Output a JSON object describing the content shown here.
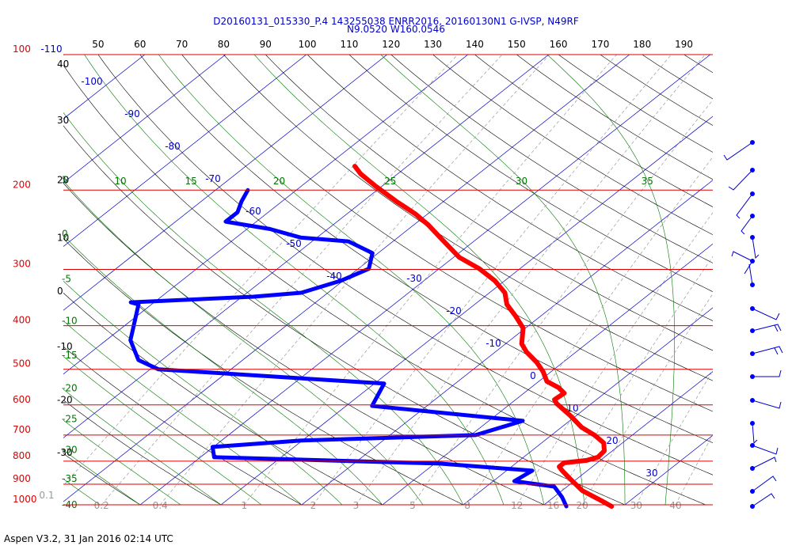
{
  "header": {
    "title": "D20160131_015330_P.4 143255038 ENRR2016, 20160130N1 G-IVSP, N49RF",
    "subtitle": "N9.0520 W160.0546"
  },
  "footer": "Aspen V3.2, 31 Jan 2016  02:14 UTC",
  "chart_data": {
    "type": "skewt",
    "ylim": [
      1000,
      100
    ],
    "yticks": [
      100,
      200,
      300,
      400,
      500,
      600,
      700,
      800,
      900,
      1000
    ],
    "grid": true,
    "grid_color": "#dd0000",
    "isotherms": [
      -110,
      -100,
      -90,
      -80,
      -70,
      -60,
      -50,
      -40,
      -30,
      -20,
      -10,
      0,
      10,
      20,
      30
    ],
    "isotherm_color": "#0000cc",
    "dry_adiabats": [
      -30,
      -20,
      -10,
      0,
      10,
      20,
      30,
      40,
      50,
      60,
      70,
      80,
      90,
      100,
      110,
      120,
      130,
      140,
      150,
      160,
      170,
      180,
      190
    ],
    "dry_adiabat_color": "#000000",
    "moist_adiabats": [
      -40,
      -35,
      -30,
      -25,
      -20,
      -15,
      -10,
      -5,
      0,
      5,
      10,
      15,
      20,
      25,
      30,
      35
    ],
    "moist_adiabat_color": "#007700",
    "mixing_ratios": [
      0.1,
      0.2,
      0.4,
      1,
      2,
      3,
      5,
      8,
      12,
      16,
      20,
      30,
      40
    ],
    "mixing_ratio_color": "#999999",
    "series": [
      {
        "color": "#ff0000",
        "pressure": [
          1008,
          980,
          930,
          875,
          840,
          823,
          807,
          797,
          784,
          759,
          729,
          700,
          673,
          633,
          596,
          584,
          565,
          549,
          532,
          506,
          482,
          458,
          439,
          405,
          381,
          359,
          338,
          318,
          299,
          282,
          260,
          239,
          226,
          212,
          196,
          184,
          177
        ],
        "values": [
          28.6,
          26.5,
          22.5,
          19.1,
          16.9,
          15.9,
          15.9,
          18.3,
          19.2,
          19.0,
          17.7,
          15.3,
          12.5,
          9.2,
          5.7,
          4.8,
          5.0,
          3.4,
          1.0,
          -1.0,
          -3.3,
          -6.1,
          -8.0,
          -10.3,
          -13.1,
          -16.0,
          -18.1,
          -21.2,
          -25.0,
          -29.3,
          -33.7,
          -38.2,
          -41.5,
          -45.8,
          -50.8,
          -54.6,
          -56.5
        ]
      },
      {
        "color": "#0000ff",
        "pressure": [
          1008,
          961,
          911,
          886,
          840,
          810,
          784,
          744,
          720,
          700,
          651,
          603,
          538,
          500,
          477,
          431,
          359,
          355,
          345,
          338,
          318,
          299,
          276,
          260,
          255,
          244,
          235,
          224,
          212,
          200
        ],
        "values": [
          23.0,
          21.0,
          18.4,
          12.6,
          13.2,
          0.6,
          -28.3,
          -30.1,
          -20.1,
          0.6,
          4.2,
          -16.8,
          -18.8,
          -49.0,
          -52.9,
          -57.0,
          -61.6,
          -62.9,
          -48.6,
          -43.3,
          -40.3,
          -38.7,
          -40.7,
          -45.5,
          -52.0,
          -57.2,
          -63.8,
          -63.8,
          -65.0,
          -66.0
        ]
      }
    ]
  }
}
